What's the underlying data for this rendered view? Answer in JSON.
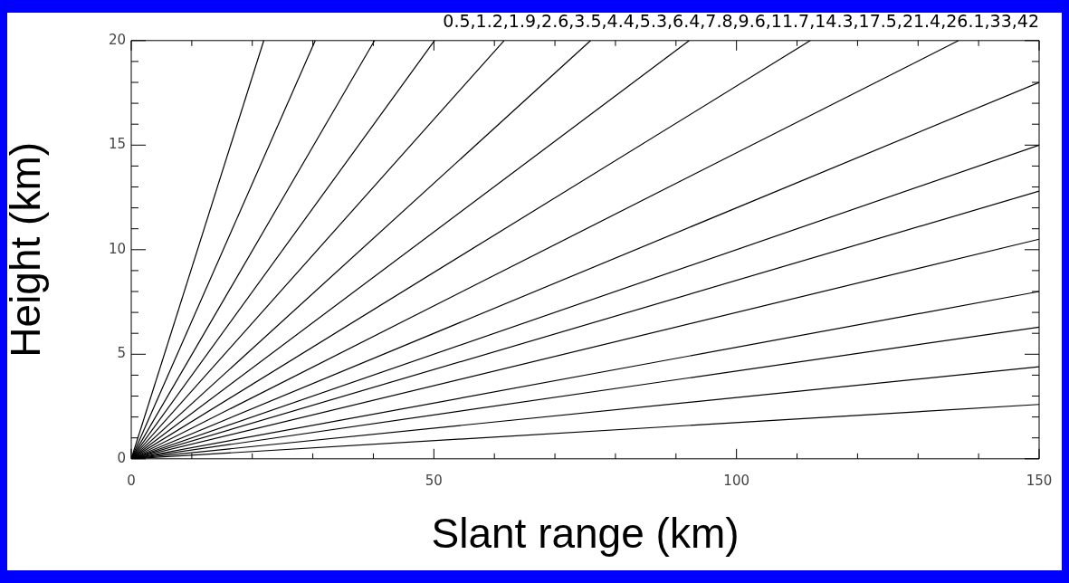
{
  "chart_data": {
    "type": "line",
    "title": "0.5,1.2,1.9,2.6,3.5,4.4,5.3,6.4,7.8,9.6,11.7,14.3,17.5,21.4,26.1,33,42",
    "xlabel": "Slant range (km)",
    "ylabel": "Height (km)",
    "xlim": [
      0,
      150
    ],
    "ylim": [
      0,
      20
    ],
    "xticks": [
      0,
      {
        "value": 10,
        "label": null
      },
      {
        "value": 20,
        "label": null
      },
      {
        "value": 30,
        "label": null
      },
      {
        "value": 40,
        "label": null
      },
      50,
      {
        "value": 60,
        "label": null
      },
      {
        "value": 70,
        "label": null
      },
      {
        "value": 80,
        "label": null
      },
      {
        "value": 90,
        "label": null
      },
      100,
      {
        "value": 110,
        "label": null
      },
      {
        "value": 120,
        "label": null
      },
      {
        "value": 130,
        "label": null
      },
      {
        "value": 140,
        "label": null
      },
      150
    ],
    "yticks": [
      0,
      {
        "value": 1,
        "label": null
      },
      {
        "value": 2,
        "label": null
      },
      {
        "value": 3,
        "label": null
      },
      {
        "value": 4,
        "label": null
      },
      5,
      {
        "value": 6,
        "label": null
      },
      {
        "value": 7,
        "label": null
      },
      {
        "value": 8,
        "label": null
      },
      {
        "value": 9,
        "label": null
      },
      10,
      {
        "value": 11,
        "label": null
      },
      {
        "value": 12,
        "label": null
      },
      {
        "value": 13,
        "label": null
      },
      {
        "value": 14,
        "label": null
      },
      15,
      {
        "value": 16,
        "label": null
      },
      {
        "value": 17,
        "label": null
      },
      {
        "value": 18,
        "label": null
      },
      {
        "value": 19,
        "label": null
      },
      20
    ],
    "grid": false,
    "legend": false,
    "marker": "none",
    "line_style": "solid",
    "series": [
      {
        "color": "#000000",
        "x": [
          0,
          150
        ],
        "values": [
          0,
          2.6
        ]
      },
      {
        "color": "#000000",
        "x": [
          0,
          150
        ],
        "values": [
          0,
          4.4
        ]
      },
      {
        "color": "#000000",
        "x": [
          0,
          150
        ],
        "values": [
          0,
          6.3
        ]
      },
      {
        "color": "#000000",
        "x": [
          0,
          150
        ],
        "values": [
          0,
          8.0
        ]
      },
      {
        "color": "#000000",
        "x": [
          0,
          150
        ],
        "values": [
          0,
          10.5
        ]
      },
      {
        "color": "#000000",
        "x": [
          0,
          150
        ],
        "values": [
          0,
          12.8
        ]
      },
      {
        "color": "#000000",
        "x": [
          0,
          150
        ],
        "values": [
          0,
          15.0
        ]
      },
      {
        "color": "#000000",
        "x": [
          0,
          150
        ],
        "values": [
          0,
          18.0
        ]
      },
      {
        "color": "#000000",
        "x": [
          0,
          136.7
        ],
        "values": [
          0,
          20
        ]
      },
      {
        "color": "#000000",
        "x": [
          0,
          112.2
        ],
        "values": [
          0,
          20
        ]
      },
      {
        "color": "#000000",
        "x": [
          0,
          92.2
        ],
        "values": [
          0,
          20
        ]
      },
      {
        "color": "#000000",
        "x": [
          0,
          75.9
        ],
        "values": [
          0,
          20
        ]
      },
      {
        "color": "#000000",
        "x": [
          0,
          61.6
        ],
        "values": [
          0,
          20
        ]
      },
      {
        "color": "#000000",
        "x": [
          0,
          50.1
        ],
        "values": [
          0,
          20
        ]
      },
      {
        "color": "#000000",
        "x": [
          0,
          40.2
        ],
        "values": [
          0,
          20
        ]
      },
      {
        "color": "#000000",
        "x": [
          0,
          30.4
        ],
        "values": [
          0,
          20
        ]
      },
      {
        "color": "#000000",
        "x": [
          0,
          21.9
        ],
        "values": [
          0,
          20
        ]
      }
    ]
  }
}
